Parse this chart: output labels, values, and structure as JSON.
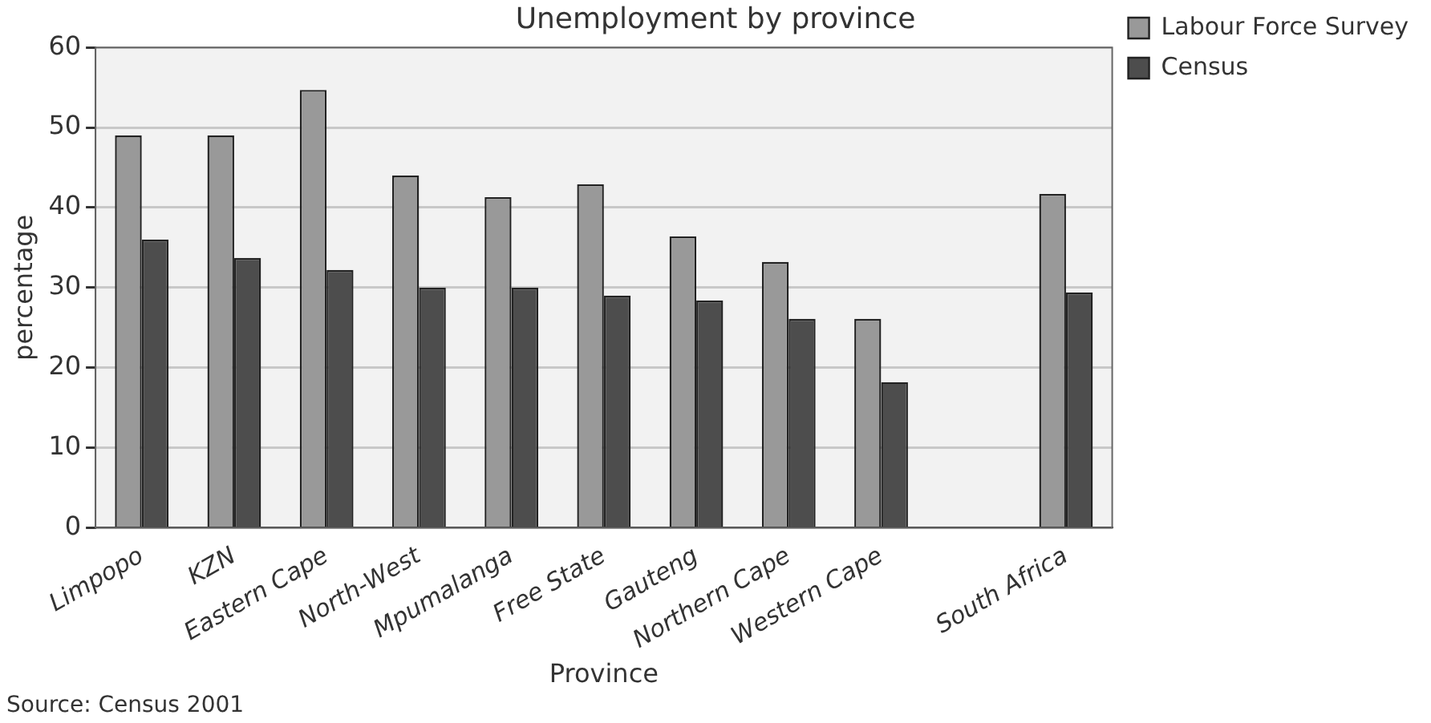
{
  "chart_data": {
    "type": "bar",
    "title": "Unemployment by province",
    "xlabel": "Province",
    "ylabel": "percentage",
    "categories": [
      "Limpopo",
      "KZN",
      "Eastern Cape",
      "North-West",
      "Mpumalanga",
      "Free State",
      "Gauteng",
      "Northern Cape",
      "Western Cape",
      null,
      "South Africa"
    ],
    "series": [
      {
        "name": "Labour Force Survey",
        "color": "#999999",
        "values": [
          49,
          49,
          54.7,
          44,
          41.3,
          42.9,
          36.4,
          33.2,
          26.1,
          null,
          41.7
        ]
      },
      {
        "name": "Census",
        "color": "#4d4d4d",
        "values": [
          36,
          33.7,
          32.2,
          30,
          30,
          29,
          28.4,
          26.1,
          18.2,
          null,
          29.4
        ]
      }
    ],
    "ylim": [
      0,
      60
    ],
    "yticks": [
      0,
      10,
      20,
      30,
      40,
      50,
      60
    ],
    "grid": "y",
    "legend": "top right",
    "annotations": [
      "Source: Census 2001"
    ]
  }
}
